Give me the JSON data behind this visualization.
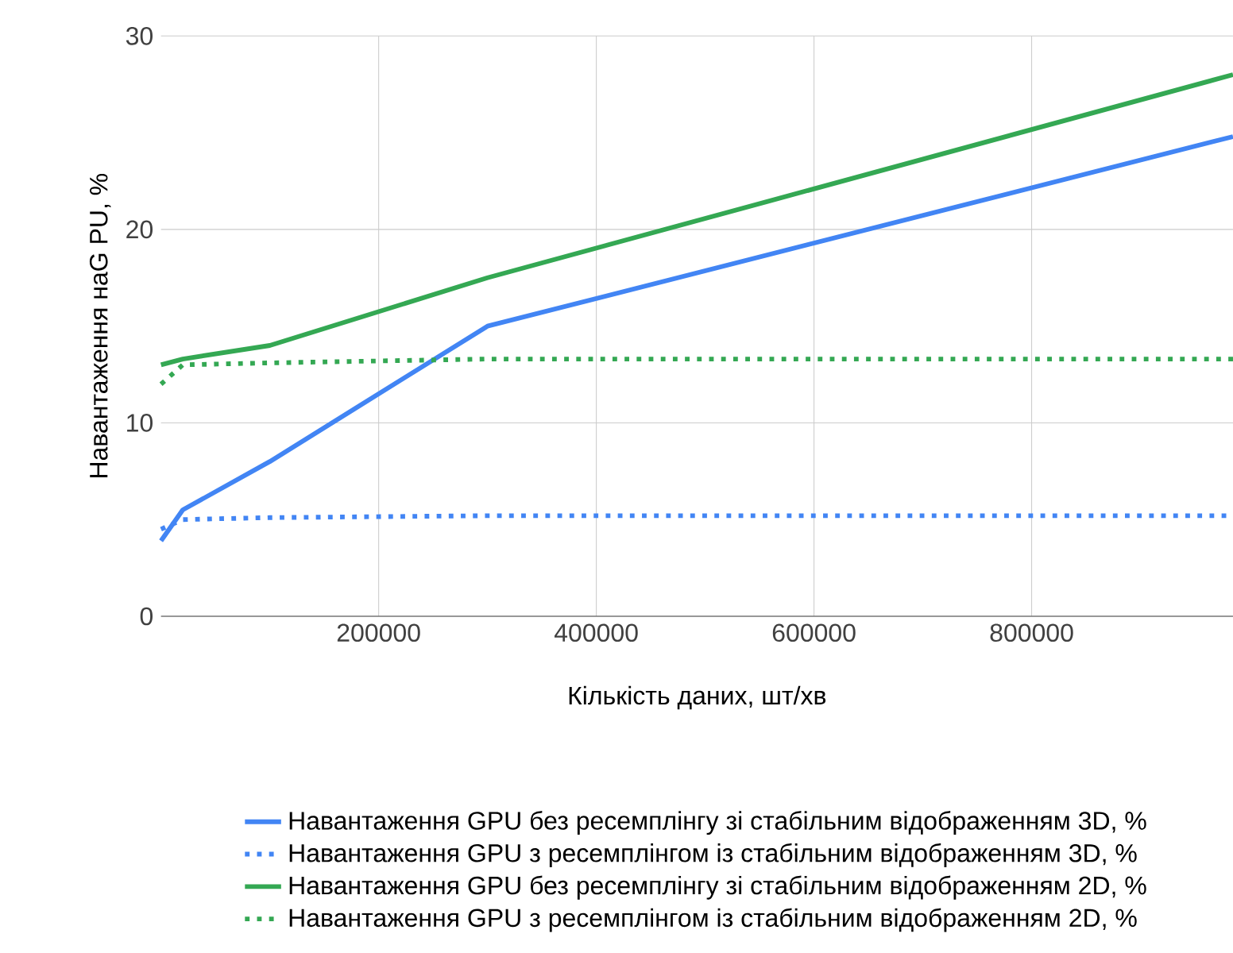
{
  "chart_data": {
    "type": "line",
    "xlabel": "Кількість даних, шт/хв",
    "ylabel": "Навантаження наG PU, %",
    "xlim": [
      0,
      985000
    ],
    "xticks": [
      200000,
      400000,
      600000,
      800000
    ],
    "ylim": [
      0,
      30
    ],
    "yticks": [
      0,
      10,
      20,
      30
    ],
    "grid": true,
    "legend": "bottom",
    "series": [
      {
        "name": "Навантаження GPU без ресемплінгу зі стабільним відображенням 3D, %",
        "color": "#4285f4",
        "line_style": "solid",
        "x": [
          0,
          20000,
          100000,
          300000,
          985000
        ],
        "values": [
          3.9,
          5.5,
          8,
          15,
          24.8
        ]
      },
      {
        "name": "Навантаження GPU з ресемплінгом із стабільним відображенням 3D, %",
        "color": "#4285f4",
        "line_style": "dotted",
        "x": [
          0,
          20000,
          100000,
          300000,
          985000
        ],
        "values": [
          4.5,
          5,
          5.1,
          5.2,
          5.2
        ]
      },
      {
        "name": "Навантаження GPU без ресемплінгу зі стабільним відображенням 2D, %",
        "color": "#34a853",
        "line_style": "solid",
        "x": [
          0,
          20000,
          100000,
          300000,
          985000
        ],
        "values": [
          13,
          13.3,
          14,
          17.5,
          28
        ]
      },
      {
        "name": "Навантаження GPU з ресемплінгом із стабільним відображенням 2D, %",
        "color": "#34a853",
        "line_style": "dotted",
        "x": [
          0,
          20000,
          100000,
          300000,
          985000
        ],
        "values": [
          12,
          13,
          13.1,
          13.3,
          13.3
        ]
      }
    ]
  }
}
